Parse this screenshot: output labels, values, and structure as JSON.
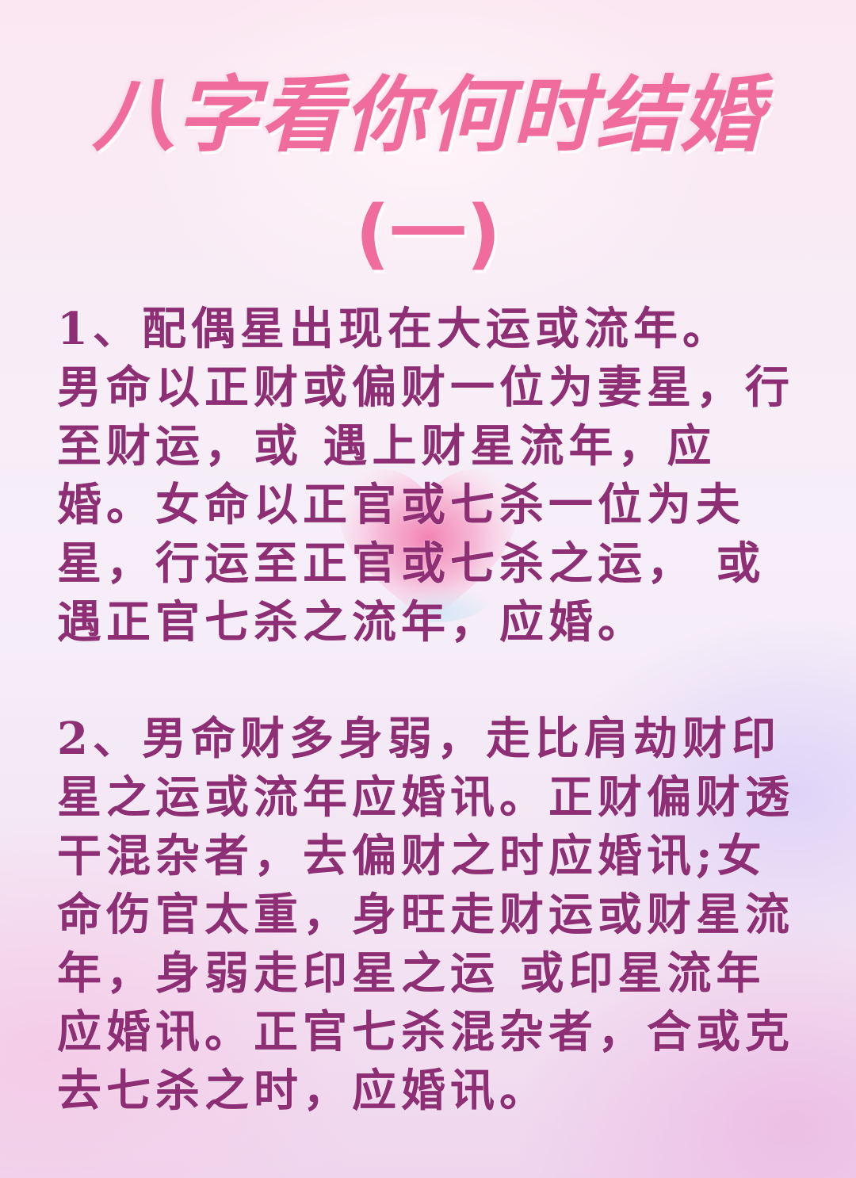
{
  "title": "八字看你何时结婚",
  "subtitle": "(一)",
  "sections": [
    {
      "text": "1、配偶星出现在大运或流年。\n男命以正财或偏财一位为妻星，行至财运，或 遇上财星流年，应婚。女命以正官或七杀一位为夫星，行运至正官或七杀之运， 或遇正官七杀之流年，应婚。"
    },
    {
      "text": "2、男命财多身弱，走比肩劫财印星之运或流年应婚讯。正财偏财透干混杂者，去偏财之时应婚讯;女命伤官太重，身旺走财运或财星流年，身弱走印星之运 或印星流年应婚讯。正官七杀混杂者，合或克去七杀之时，应婚讯。"
    }
  ],
  "colors": {
    "title": "#ef6c9c",
    "body_text": "#8e2e74",
    "background_top": "#fbe7f1",
    "background_bottom": "#efd6ee",
    "heart": "#f48cb8"
  },
  "icons": {
    "heart": "heart-icon"
  }
}
